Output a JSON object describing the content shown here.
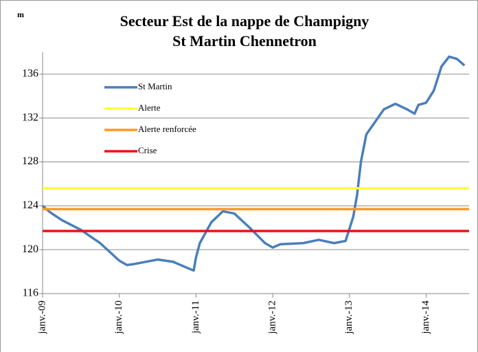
{
  "chart_data": {
    "type": "line",
    "title": [
      "Secteur Est de la nappe de Champigny",
      "St Martin Chennetron"
    ],
    "y_label": "m",
    "xlim": [
      2009,
      2014.56
    ],
    "xticks": [
      {
        "value": 2009,
        "label": "janv.-09"
      },
      {
        "value": 2010,
        "label": "janv.-10"
      },
      {
        "value": 2011,
        "label": "janv.-11"
      },
      {
        "value": 2012,
        "label": "janv.-12"
      },
      {
        "value": 2013,
        "label": "janv.-13"
      },
      {
        "value": 2014,
        "label": "janv.-14"
      }
    ],
    "ylim": [
      116,
      138
    ],
    "yticks": [
      116,
      120,
      124,
      128,
      132,
      136
    ],
    "grid": true,
    "legend": "upper left",
    "series": [
      {
        "name": "St Martin",
        "color": "#4a7ebb",
        "x": [
          2009.0,
          2009.1,
          2009.25,
          2009.5,
          2009.75,
          2010.0,
          2010.1,
          2010.2,
          2010.5,
          2010.7,
          2010.9,
          2010.97,
          2011.0,
          2011.05,
          2011.2,
          2011.35,
          2011.5,
          2011.7,
          2011.9,
          2012.0,
          2012.1,
          2012.4,
          2012.6,
          2012.8,
          2012.95,
          2013.05,
          2013.1,
          2013.15,
          2013.22,
          2013.35,
          2013.45,
          2013.6,
          2013.75,
          2013.85,
          2013.9,
          2014.0,
          2014.1,
          2014.2,
          2014.3,
          2014.4,
          2014.5
        ],
        "values": [
          124.0,
          123.4,
          122.7,
          121.8,
          120.6,
          119.0,
          118.6,
          118.7,
          119.1,
          118.9,
          118.3,
          118.1,
          119.3,
          120.6,
          122.5,
          123.5,
          123.3,
          122.0,
          120.6,
          120.2,
          120.5,
          120.6,
          120.9,
          120.6,
          120.8,
          123.0,
          125.0,
          128.0,
          130.5,
          131.8,
          132.8,
          133.3,
          132.8,
          132.4,
          133.2,
          133.4,
          134.5,
          136.7,
          137.6,
          137.4,
          136.8
        ]
      },
      {
        "name": "Alerte",
        "color": "#ffff33",
        "value": 125.6
      },
      {
        "name": "Alerte renforcée",
        "color": "#ff9922",
        "value": 123.7
      },
      {
        "name": "Crise",
        "color": "#ee1111",
        "value": 121.7
      }
    ]
  }
}
